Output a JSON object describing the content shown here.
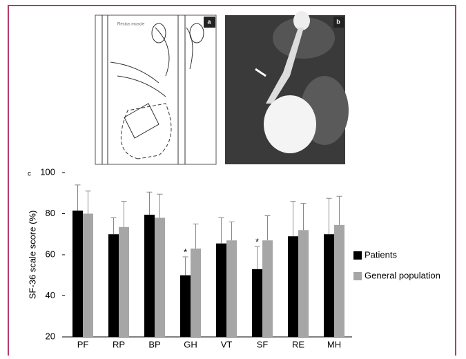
{
  "panels": {
    "a": "a",
    "b": "b",
    "c": "c",
    "drawing_label": "Rectus muscle"
  },
  "chart_data": {
    "type": "bar",
    "y_label": "SF-36 scale score (%)",
    "categories": [
      "PF",
      "RP",
      "BP",
      "GH",
      "VT",
      "SF",
      "RE",
      "MH"
    ],
    "series": [
      {
        "name": "Patients",
        "color": "#000000",
        "values": [
          81.5,
          70,
          79.5,
          50,
          65.5,
          53,
          69,
          70
        ],
        "errors": [
          12.5,
          8,
          11,
          9,
          12.5,
          11,
          17,
          17.5
        ],
        "markers": [
          null,
          null,
          null,
          "*",
          null,
          "*",
          null,
          null
        ]
      },
      {
        "name": "General population",
        "color": "#a6a6a6",
        "values": [
          80,
          73.5,
          78,
          63,
          67,
          67,
          72,
          74.5
        ],
        "errors": [
          11,
          12.5,
          11.5,
          12,
          9,
          12,
          13,
          14
        ]
      }
    ],
    "ylim": [
      20,
      100
    ],
    "yticks": [
      20,
      40,
      60,
      80,
      100
    ],
    "grid": false,
    "legend": "right"
  }
}
